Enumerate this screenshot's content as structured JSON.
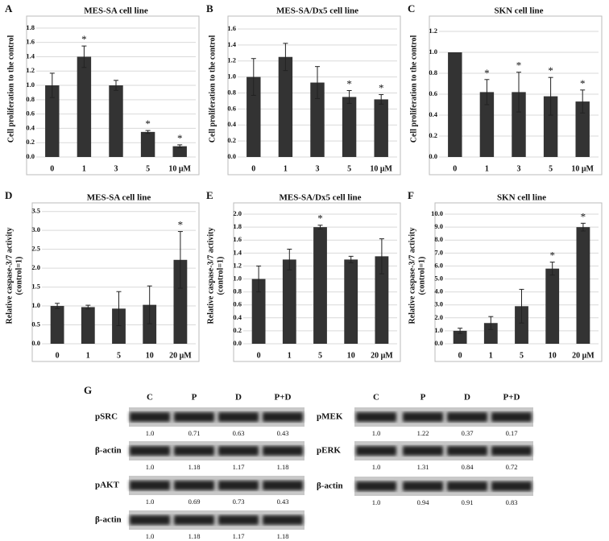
{
  "chart_data": [
    {
      "type": "bar",
      "panel": "A",
      "title": "MES-SA cell line",
      "ylabel": [
        "Cell proliferation to the control"
      ],
      "categories": [
        "0",
        "1",
        "3",
        "5",
        "10 μM"
      ],
      "values": [
        1.0,
        1.4,
        1.0,
        0.35,
        0.15
      ],
      "errors": [
        0.17,
        0.15,
        0.07,
        0.02,
        0.02
      ],
      "markers": [
        null,
        "*",
        null,
        "*",
        "*"
      ],
      "color": "#333333",
      "ylim": [
        0,
        1.9
      ],
      "yticks": [
        {
          "value": 0,
          "label": "0.0"
        },
        0.2,
        0.4,
        0.6,
        0.8,
        {
          "value": 1,
          "label": "1.0"
        },
        1.2,
        1.4,
        1.6,
        1.8
      ],
      "grid": true
    },
    {
      "type": "bar",
      "panel": "B",
      "title": "MES-SA/Dx5 cell line",
      "ylabel": [
        "Cell proliferation to the control"
      ],
      "categories": [
        "0",
        "1",
        "3",
        "5",
        "10 μM"
      ],
      "values": [
        1.0,
        1.25,
        0.93,
        0.75,
        0.72
      ],
      "errors": [
        0.23,
        0.17,
        0.2,
        0.08,
        0.06
      ],
      "markers": [
        null,
        null,
        null,
        "*",
        "*"
      ],
      "color": "#333333",
      "ylim": [
        0,
        1.7
      ],
      "yticks": [
        {
          "value": 0,
          "label": "0.0"
        },
        0.2,
        0.4,
        0.6,
        0.8,
        {
          "value": 1,
          "label": "1.0"
        },
        1.2,
        1.4,
        1.6
      ],
      "grid": true
    },
    {
      "type": "bar",
      "panel": "C",
      "title": "SKN cell line",
      "ylabel": [
        "Cell proliferation to the control"
      ],
      "categories": [
        "0",
        "1",
        "3",
        "5",
        "10 μM"
      ],
      "values": [
        1.0,
        0.62,
        0.62,
        0.58,
        0.53
      ],
      "errors": [
        0,
        0.12,
        0.19,
        0.18,
        0.11
      ],
      "markers": [
        null,
        "*",
        "*",
        "*",
        "*"
      ],
      "color": "#333333",
      "ylim": [
        0,
        1.3
      ],
      "yticks": [
        {
          "value": 0,
          "label": "0.0"
        },
        0.2,
        0.4,
        0.6,
        0.8,
        {
          "value": 1,
          "label": "1.0"
        },
        1.2
      ],
      "grid": true
    },
    {
      "type": "bar",
      "panel": "D",
      "title": "MES-SA cell line",
      "ylabel": [
        "Relative caspase-3/7 activity",
        "(control=1)"
      ],
      "categories": [
        "0",
        "1",
        "5",
        "10",
        "20 μM"
      ],
      "values": [
        1.0,
        0.97,
        0.93,
        1.03,
        2.22
      ],
      "errors": [
        0.07,
        0.05,
        0.45,
        0.5,
        0.75
      ],
      "markers": [
        null,
        null,
        null,
        null,
        "*"
      ],
      "color": "#333333",
      "ylim": [
        0,
        3.6
      ],
      "yticks": [
        {
          "value": 0,
          "label": "0.0"
        },
        0.5,
        {
          "value": 1,
          "label": "1.0"
        },
        1.5,
        {
          "value": 2,
          "label": "2.0"
        },
        2.5,
        {
          "value": 3,
          "label": "3.0"
        },
        3.5
      ],
      "grid": true
    },
    {
      "type": "bar",
      "panel": "E",
      "title": "MES-SA/Dx5 cell line",
      "ylabel": [
        "Relative caspase-3/7 activity",
        "(control=1)"
      ],
      "categories": [
        "0",
        "1",
        "5",
        "10",
        "20 μM"
      ],
      "values": [
        1.0,
        1.3,
        1.8,
        1.3,
        1.35
      ],
      "errors": [
        0.2,
        0.16,
        0.03,
        0.05,
        0.27
      ],
      "markers": [
        null,
        null,
        "*",
        null,
        null
      ],
      "color": "#333333",
      "ylim": [
        0,
        2.1
      ],
      "yticks": [
        {
          "value": 0,
          "label": "0.0"
        },
        0.2,
        0.4,
        0.6,
        0.8,
        {
          "value": 1,
          "label": "1.0"
        },
        1.2,
        1.4,
        1.6,
        1.8,
        {
          "value": 2,
          "label": "2.0"
        }
      ],
      "grid": true
    },
    {
      "type": "bar",
      "panel": "F",
      "title": "SKN cell line",
      "ylabel": [
        "Relative caspase-3/7 activity",
        "(control=1)"
      ],
      "categories": [
        "0",
        "1",
        "5",
        "10",
        "20 μM"
      ],
      "values": [
        1.0,
        1.6,
        2.9,
        5.8,
        9.0
      ],
      "errors": [
        0.2,
        0.5,
        1.3,
        0.5,
        0.3
      ],
      "markers": [
        null,
        null,
        null,
        "*",
        "*"
      ],
      "color": "#333333",
      "ylim": [
        0,
        10.5
      ],
      "yticks": [
        {
          "value": 0,
          "label": "0.0"
        },
        {
          "value": 1,
          "label": "1.0"
        },
        {
          "value": 2,
          "label": "2.0"
        },
        {
          "value": 3,
          "label": "3.0"
        },
        {
          "value": 4,
          "label": "4.0"
        },
        {
          "value": 5,
          "label": "5.0"
        },
        {
          "value": 6,
          "label": "6.0"
        },
        {
          "value": 7,
          "label": "7.0"
        },
        {
          "value": 8,
          "label": "8.0"
        },
        {
          "value": 9,
          "label": "9.0"
        },
        {
          "value": 10,
          "label": "10.0"
        }
      ],
      "grid": true
    }
  ],
  "western_blot": {
    "panel": "G",
    "left": {
      "lanes": [
        "C",
        "P",
        "D",
        "P+D"
      ],
      "rows": [
        {
          "label": "pSRC",
          "values": [
            "1.0",
            "0.71",
            "0.63",
            "0.43"
          ],
          "value_colors": [
            "#111111",
            "#111111",
            "#e0202e",
            "#e0202e"
          ]
        },
        {
          "label": "β-actin",
          "values": [
            "1.0",
            "1.18",
            "1.17",
            "1.18"
          ],
          "value_colors": [
            "#111111",
            "#111111",
            "#111111",
            "#111111"
          ]
        },
        {
          "label": "pAKT",
          "values": [
            "1.0",
            "0.69",
            "0.73",
            "0.43"
          ],
          "value_colors": [
            "#111111",
            "#111111",
            "#e0202e",
            "#e0202e"
          ]
        },
        {
          "label": "β-actin",
          "values": [
            "1.0",
            "1.18",
            "1.17",
            "1.18"
          ],
          "value_colors": [
            "#111111",
            "#111111",
            "#111111",
            "#111111"
          ]
        }
      ]
    },
    "right": {
      "lanes": [
        "C",
        "P",
        "D",
        "P+D"
      ],
      "rows": [
        {
          "label": "pMEK",
          "values": [
            "1.0",
            "1.22",
            "0.37",
            "0.17"
          ],
          "value_colors": [
            "#111111",
            "#111111",
            "#e0202e",
            "#e0202e"
          ]
        },
        {
          "label": "pERK",
          "values": [
            "1.0",
            "1.31",
            "0.84",
            "0.72"
          ],
          "value_colors": [
            "#111111",
            "#111111",
            "#e0202e",
            "#e0202e"
          ]
        },
        {
          "label": "β-actin",
          "values": [
            "1.0",
            "0.94",
            "0.91",
            "0.83"
          ],
          "value_colors": [
            "#111111",
            "#111111",
            "#111111",
            "#111111"
          ]
        }
      ]
    }
  }
}
